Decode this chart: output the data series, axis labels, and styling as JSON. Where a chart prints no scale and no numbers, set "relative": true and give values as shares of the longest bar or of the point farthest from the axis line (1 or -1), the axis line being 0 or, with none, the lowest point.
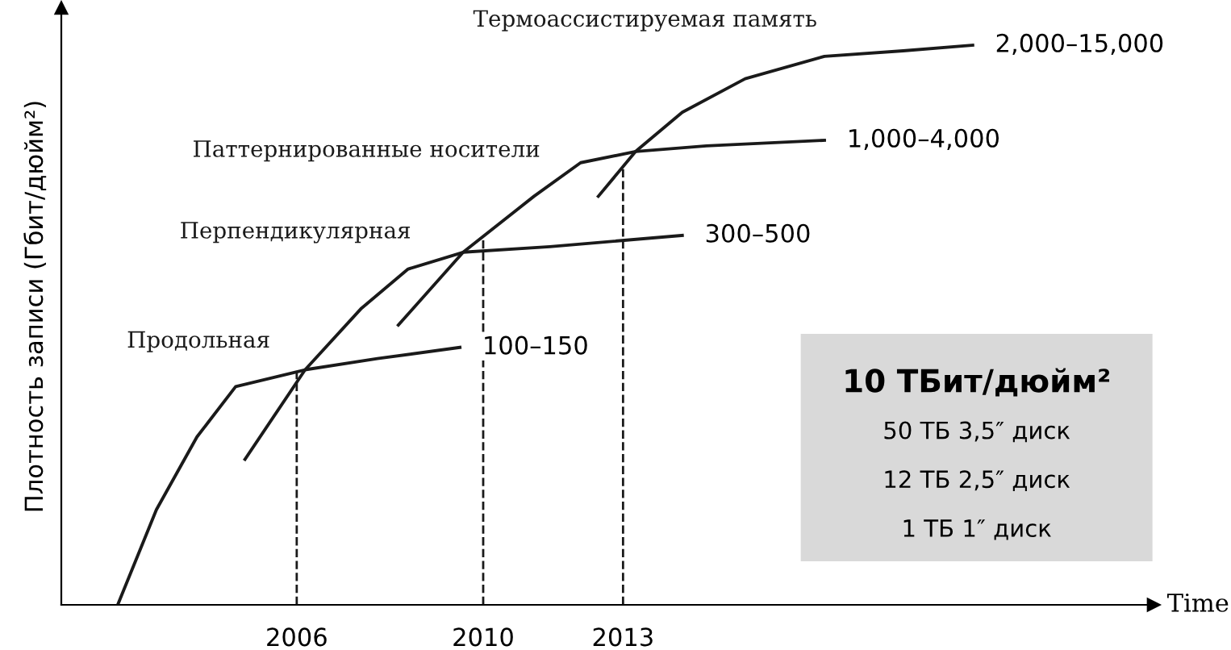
{
  "chart_data": {
    "type": "line",
    "relative": true,
    "xlabel": "Time",
    "ylabel": "Плотность записи (Гбит/дюйм²)",
    "xlim": [
      2000.95,
      2024.38
    ],
    "xticks": [
      2006,
      2010,
      2013
    ],
    "grid": false,
    "marker": "none",
    "line_style": "solid",
    "color": "#1a1a1a",
    "series": [
      {
        "name": "Продольная",
        "x": [
          2002.16,
          2002.99,
          2003.86,
          2004.69,
          2006.18,
          2007.73,
          2009.5
        ],
        "values": [
          0.0,
          0.17,
          0.3,
          0.39,
          0.42,
          0.44,
          0.46
        ]
      },
      {
        "name": "Перпендикулярная",
        "x": [
          2004.89,
          2006.18,
          2007.39,
          2008.39,
          2009.57,
          2011.43,
          2014.27
        ],
        "values": [
          0.26,
          0.42,
          0.53,
          0.6,
          0.63,
          0.64,
          0.66
        ]
      },
      {
        "name": "Паттернированные носители",
        "x": [
          2008.18,
          2009.57,
          2011.09,
          2012.09,
          2013.27,
          2014.79,
          2017.32
        ],
        "values": [
          0.5,
          0.63,
          0.73,
          0.79,
          0.81,
          0.82,
          0.83
        ]
      },
      {
        "name": "Термоассистируемая память",
        "x": [
          2012.47,
          2013.27,
          2014.27,
          2015.62,
          2017.32,
          2019.01,
          2020.5
        ],
        "values": [
          0.73,
          0.81,
          0.88,
          0.94,
          0.98,
          0.99,
          1.0
        ]
      }
    ],
    "ref_lines": [
      {
        "axis": "x",
        "value": 2006,
        "line_style": "dashed"
      },
      {
        "axis": "x",
        "value": 2010,
        "line_style": "dashed"
      },
      {
        "axis": "x",
        "value": 2013,
        "line_style": "dashed"
      }
    ],
    "annotations": [
      {
        "text": "100–150",
        "x": 2009.5,
        "y": 0.46
      },
      {
        "text": "300–500",
        "x": 2014.27,
        "y": 0.66
      },
      {
        "text": "1,000–4,000",
        "x": 2017.32,
        "y": 0.83
      },
      {
        "text": "2,000–15,000",
        "x": 2020.5,
        "y": 1.0
      },
      "10 ТБит/дюйм²",
      "50 ТБ 3,5″ диск",
      "12 ТБ 2,5″ диск",
      "1 ТБ 1″ диск"
    ]
  }
}
